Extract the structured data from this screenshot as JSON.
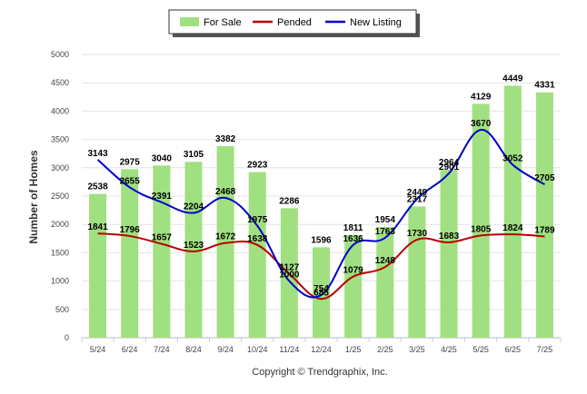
{
  "chart_data": {
    "type": "bar",
    "categories": [
      "5/24",
      "6/24",
      "7/24",
      "8/24",
      "9/24",
      "10/24",
      "11/24",
      "12/24",
      "1/25",
      "2/25",
      "3/25",
      "4/25",
      "5/25",
      "6/25",
      "7/25"
    ],
    "series": [
      {
        "name": "For Sale",
        "type": "bar",
        "color": "#a0e080",
        "values": [
          2538,
          2975,
          3040,
          3105,
          3382,
          2923,
          2286,
          1596,
          1811,
          1954,
          2317,
          2964,
          4129,
          4449,
          4331
        ]
      },
      {
        "name": "Pended",
        "type": "line",
        "color": "#b80000",
        "values": [
          1841,
          1796,
          1657,
          1523,
          1672,
          1638,
          1127,
          685,
          1079,
          1248,
          1730,
          1683,
          1805,
          1824,
          1789
        ]
      },
      {
        "name": "New Listing",
        "type": "line",
        "color": "#0000cc",
        "values": [
          3143,
          2655,
          2391,
          2204,
          2468,
          1975,
          1000,
          754,
          1636,
          1763,
          2449,
          2901,
          3670,
          3052,
          2705
        ]
      }
    ],
    "ylabel": "Number of Homes",
    "ylim": [
      0,
      5000
    ],
    "yticks": [
      0,
      500,
      1000,
      1500,
      2000,
      2500,
      3000,
      3500,
      4000,
      4500,
      5000
    ],
    "grid": true,
    "legend": "top-center",
    "footer": "Copyright © Trendgraphix, Inc."
  }
}
